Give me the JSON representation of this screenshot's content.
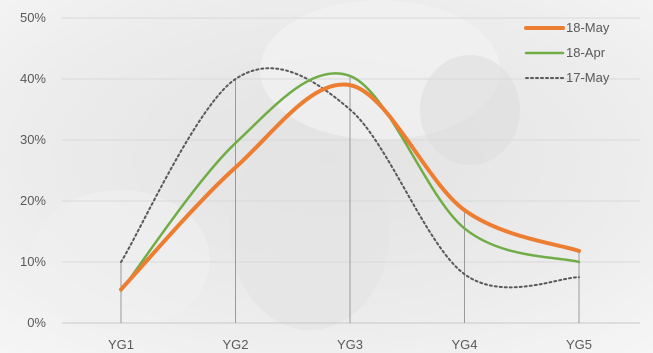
{
  "chart_data": {
    "type": "line",
    "categories": [
      "YG1",
      "YG2",
      "YG3",
      "YG4",
      "YG5"
    ],
    "y_ticks": [
      "0%",
      "10%",
      "20%",
      "30%",
      "40%",
      "50%"
    ],
    "ylim": [
      0,
      50
    ],
    "y_unit": "%",
    "smooth": true,
    "grid": "horizontal",
    "category_drop_lines": true,
    "legend_position": "top-right",
    "series": [
      {
        "name": "18-May",
        "values": [
          5.5,
          25.5,
          39,
          18.5,
          11.8
        ],
        "color": "#ED7D31",
        "style": "solid-thick"
      },
      {
        "name": "18-Apr",
        "values": [
          5.3,
          29.5,
          40.5,
          15.5,
          10
        ],
        "color": "#70AD47",
        "style": "solid"
      },
      {
        "name": "17-May",
        "values": [
          10,
          40,
          35,
          8,
          7.5
        ],
        "color": "#595959",
        "style": "dotted"
      }
    ]
  }
}
